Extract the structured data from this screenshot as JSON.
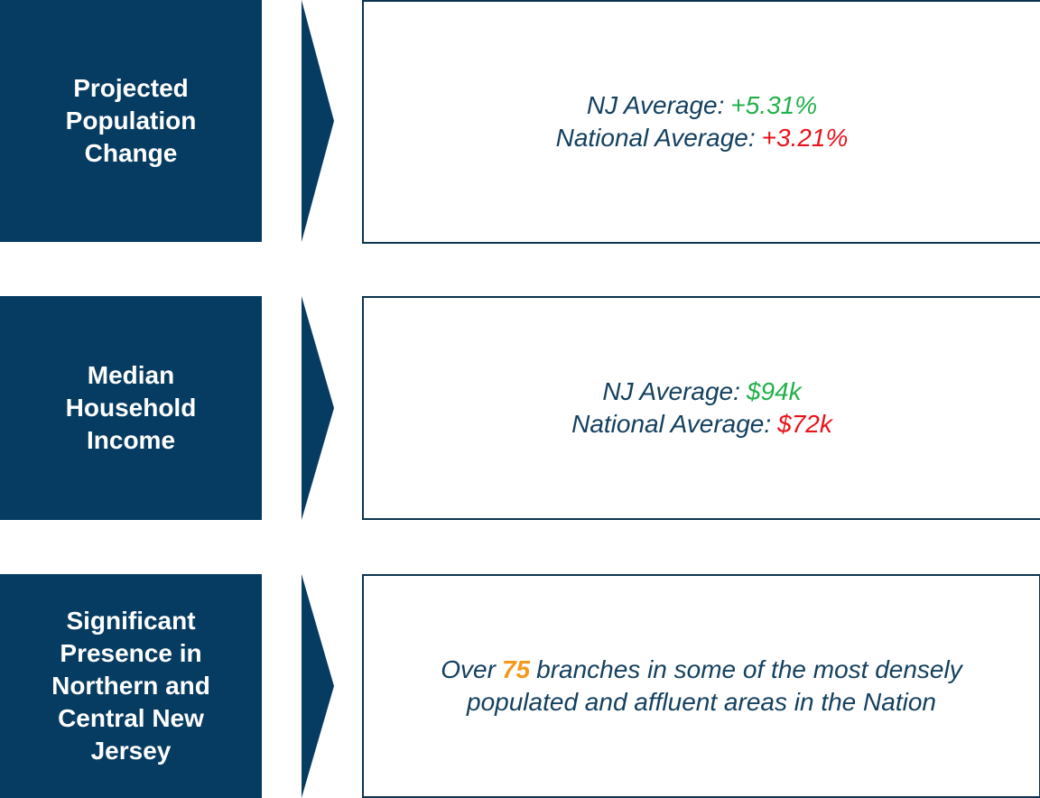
{
  "rows": [
    {
      "label": [
        "Projected",
        "Population",
        "Change"
      ],
      "lines": [
        {
          "prefix": "NJ Average:",
          "value": "+5.31%"
        },
        {
          "prefix": "National Average:",
          "value": "+3.21%"
        }
      ]
    },
    {
      "label": [
        "Median",
        "Household",
        "Income"
      ],
      "lines": [
        {
          "prefix": "NJ Average:",
          "value": "$94k"
        },
        {
          "prefix": "National Average:",
          "value": "$72k"
        }
      ]
    },
    {
      "label": [
        "Significant",
        "Presence in",
        "Northern and",
        "Central New",
        "Jersey"
      ],
      "text": {
        "start": "Over",
        "number": "75",
        "rest_1": "branches in some of the most densely",
        "rest_2": "populated and affluent areas in the Nation"
      }
    }
  ]
}
